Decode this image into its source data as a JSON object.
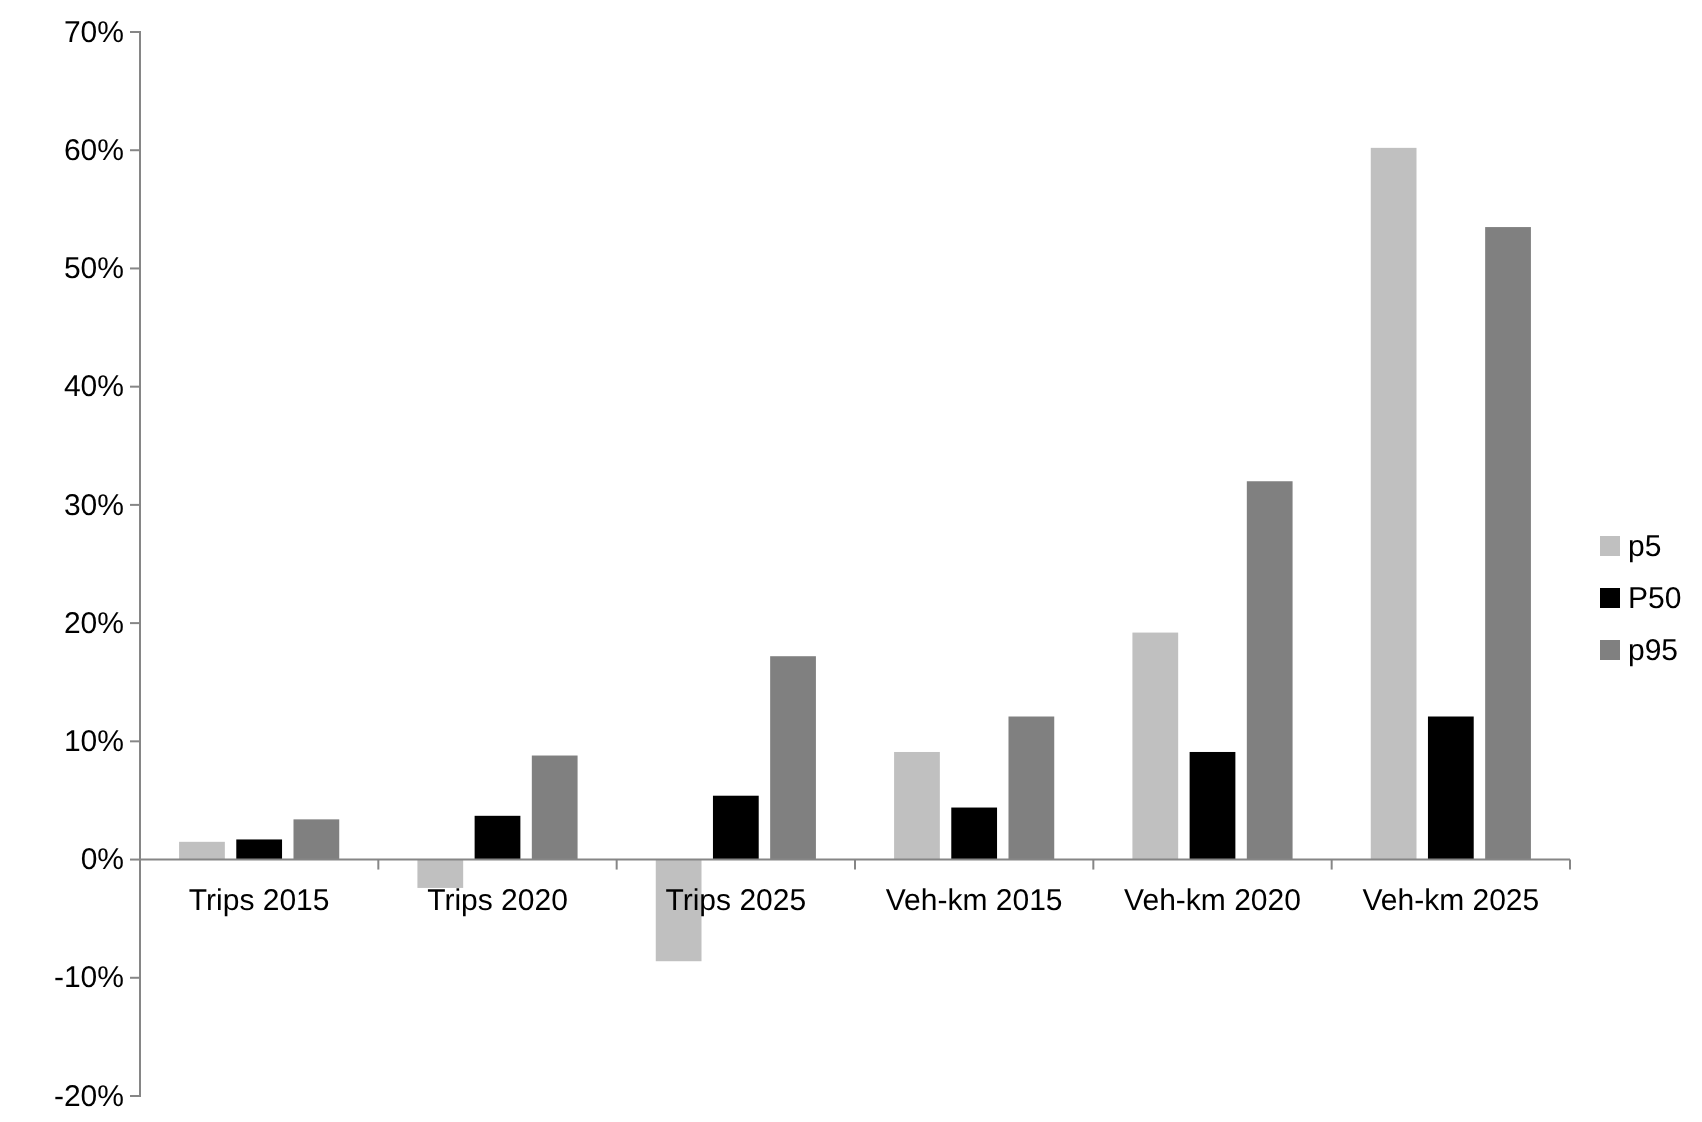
{
  "chart_data": {
    "type": "bar",
    "categories": [
      "Trips 2015",
      "Trips 2020",
      "Trips 2025",
      "Veh-km 2015",
      "Veh-km 2020",
      "Veh-km 2025"
    ],
    "series": [
      {
        "name": "p5",
        "color": "#c0c0c0",
        "values": [
          1.5,
          -2.4,
          -8.6,
          9.1,
          19.2,
          60.2
        ]
      },
      {
        "name": "P50",
        "color": "#000000",
        "values": [
          1.7,
          3.7,
          5.4,
          4.4,
          9.1,
          12.1
        ]
      },
      {
        "name": "p95",
        "color": "#808080",
        "values": [
          3.4,
          8.8,
          17.2,
          12.1,
          32.0,
          53.5
        ]
      }
    ],
    "ylim": [
      -20,
      70
    ],
    "yticks": [
      {
        "value": -20,
        "label": "-20%"
      },
      {
        "value": -10,
        "label": "-10%"
      },
      {
        "value": 0,
        "label": "0%"
      },
      {
        "value": 10,
        "label": "10%"
      },
      {
        "value": 20,
        "label": "20%"
      },
      {
        "value": 30,
        "label": "30%"
      },
      {
        "value": 40,
        "label": "40%"
      },
      {
        "value": 50,
        "label": "50%"
      },
      {
        "value": 60,
        "label": "60%"
      },
      {
        "value": 70,
        "label": "70%"
      }
    ],
    "grid": false,
    "legend": "right"
  }
}
